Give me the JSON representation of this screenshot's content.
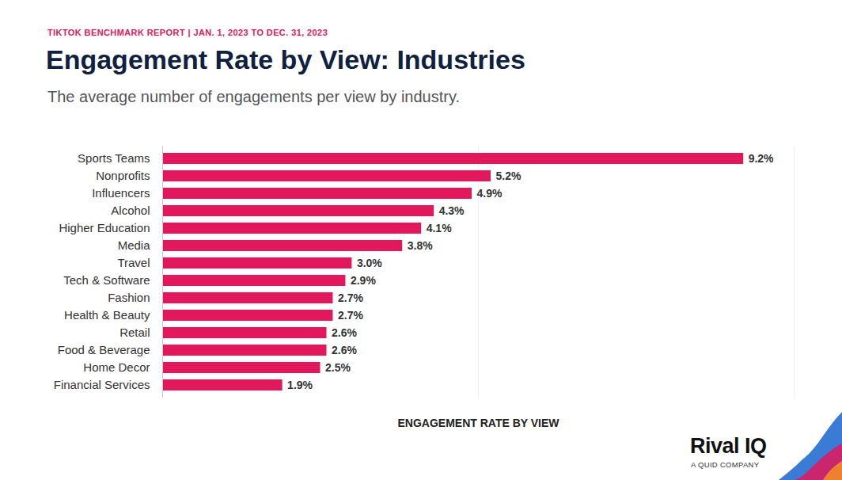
{
  "chart_data": {
    "type": "bar",
    "orientation": "horizontal",
    "header": "TIKTOK BENCHMARK REPORT | JAN. 1, 2023 TO DEC. 31, 2023",
    "title": "Engagement Rate by View: Industries",
    "subtitle": "The average number of engagements per view by industry.",
    "x_label": "ENGAGEMENT RATE BY VIEW",
    "logo": "Rival IQ",
    "logo_tagline": "A QUID COMPANY",
    "categories": [
      "Sports Teams",
      "Nonprofits",
      "Influencers",
      "Alcohol",
      "Higher Education",
      "Media",
      "Travel",
      "Tech & Software",
      "Fashion",
      "Health & Beauty",
      "Retail",
      "Food & Beverage",
      "Home Decor",
      "Financial Services"
    ],
    "values": [
      9.2,
      5.2,
      4.9,
      4.3,
      4.1,
      3.8,
      3.0,
      2.9,
      2.7,
      2.7,
      2.6,
      2.6,
      2.5,
      1.9
    ],
    "value_labels": [
      "9.2%",
      "5.2%",
      "4.9%",
      "4.3%",
      "4.1%",
      "3.8%",
      "3.0%",
      "2.9%",
      "2.7%",
      "2.7%",
      "2.6%",
      "2.6%",
      "2.5%",
      "1.9%"
    ],
    "color": "#e3175b",
    "xlim": [
      0,
      10
    ],
    "xticks": [
      0,
      5,
      10
    ],
    "grid": true,
    "data_labels": true,
    "tick_labels": "y"
  }
}
